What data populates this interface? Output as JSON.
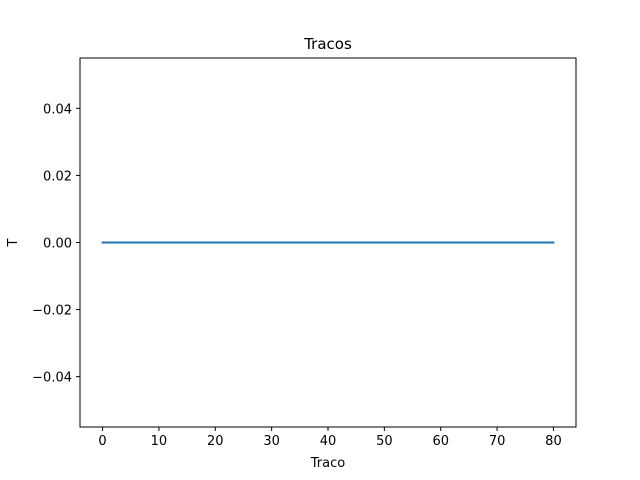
{
  "chart_data": {
    "type": "line",
    "title": "Tracos",
    "xlabel": "Traco",
    "ylabel": "T",
    "xlim": [
      -4,
      84
    ],
    "ylim": [
      -0.055,
      0.055
    ],
    "xticks": [
      0,
      10,
      20,
      30,
      40,
      50,
      60,
      70,
      80
    ],
    "xtick_labels": [
      "0",
      "10",
      "20",
      "30",
      "40",
      "50",
      "60",
      "70",
      "80"
    ],
    "yticks": [
      0.04,
      0.02,
      0.0,
      -0.02,
      -0.04
    ],
    "ytick_labels": [
      "0.04",
      "0.02",
      "0.00",
      "−0.02",
      "−0.04"
    ],
    "grid": false,
    "series": [
      {
        "color": "#1f77b4",
        "x": [
          0,
          80
        ],
        "y": [
          0.0,
          0.0
        ]
      }
    ]
  }
}
